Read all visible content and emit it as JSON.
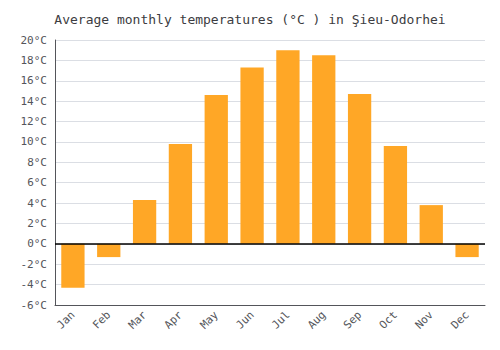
{
  "chart_data": {
    "type": "bar",
    "title": "Average monthly temperatures (°C ) in Şieu-Odorhei",
    "categories": [
      "Jan",
      "Feb",
      "Mar",
      "Apr",
      "May",
      "Jun",
      "Jul",
      "Aug",
      "Sep",
      "Oct",
      "Nov",
      "Dec"
    ],
    "values": [
      -4.3,
      -1.3,
      4.3,
      9.8,
      14.6,
      17.3,
      19.0,
      18.5,
      14.7,
      9.6,
      3.8,
      -1.3
    ],
    "color": "#FFA726",
    "ylim": [
      -6,
      20
    ],
    "yticks": [
      {
        "value": -6,
        "label": "-6°C"
      },
      {
        "value": -4,
        "label": "-4°C"
      },
      {
        "value": -2,
        "label": "-2°C"
      },
      {
        "value": 0,
        "label": "0°C"
      },
      {
        "value": 2,
        "label": "2°C"
      },
      {
        "value": 4,
        "label": "4°C"
      },
      {
        "value": 6,
        "label": "6°C"
      },
      {
        "value": 8,
        "label": "8°C"
      },
      {
        "value": 10,
        "label": "10°C"
      },
      {
        "value": 12,
        "label": "12°C"
      },
      {
        "value": 14,
        "label": "14°C"
      },
      {
        "value": 16,
        "label": "16°C"
      },
      {
        "value": 18,
        "label": "18°C"
      },
      {
        "value": 20,
        "label": "20°C"
      }
    ],
    "grid": true
  }
}
